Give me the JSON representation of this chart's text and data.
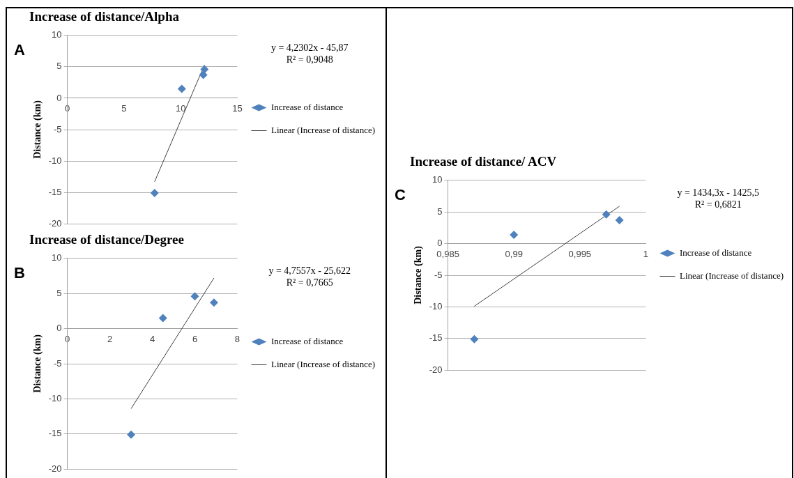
{
  "chart_data": [
    {
      "type": "scatter",
      "title": "Increase of distance/Alpha",
      "ylabel": "Distance (km)",
      "annotations": [
        "A",
        "y = 4,2302x - 45,87",
        "R² = 0,9048"
      ],
      "series": [
        {
          "name": "Increase of distance",
          "color": "#4f81bd",
          "marker": "diamond",
          "x": [
            7.7,
            10.1,
            12,
            12.1
          ],
          "values": [
            -15.1,
            1.5,
            3.7,
            4.6
          ]
        },
        {
          "name": "Linear (Increase of distance)",
          "type": "line",
          "marker": "none",
          "color": "#404040",
          "x": [
            7.7,
            12.1
          ],
          "values": [
            -13.3,
            5.3
          ]
        }
      ],
      "xlim": [
        0,
        15
      ],
      "xticks": [
        0,
        5,
        10,
        15
      ],
      "ylim": [
        -20,
        10
      ],
      "yticks": [
        -20,
        -15,
        -10,
        -5,
        0,
        5,
        10
      ],
      "grid": "y",
      "legend": "right"
    },
    {
      "type": "scatter",
      "title": "Increase of distance/Degree",
      "ylabel": "Distance (km)",
      "annotations": [
        "B",
        "y = 4,7557x - 25,622",
        "R² = 0,7665"
      ],
      "series": [
        {
          "name": "Increase of distance",
          "color": "#4f81bd",
          "marker": "diamond",
          "x": [
            3,
            4.5,
            6,
            6.9
          ],
          "values": [
            -15.1,
            1.5,
            4.6,
            3.7
          ]
        },
        {
          "name": "Linear (Increase of distance)",
          "type": "line",
          "marker": "none",
          "color": "#404040",
          "x": [
            3,
            6.9
          ],
          "values": [
            -11.4,
            7.2
          ]
        }
      ],
      "xlim": [
        0,
        8
      ],
      "xticks": [
        0,
        2,
        4,
        6,
        8
      ],
      "ylim": [
        -20,
        10
      ],
      "yticks": [
        -20,
        -15,
        -10,
        -5,
        0,
        5,
        10
      ],
      "grid": "y",
      "legend": "right"
    },
    {
      "type": "scatter",
      "title": "Increase of distance/ ACV",
      "ylabel": "Distance (km)",
      "annotations": [
        "C",
        "y = 1434,3x - 1425,5",
        "R² = 0,6821"
      ],
      "series": [
        {
          "name": "Increase of distance",
          "color": "#4f81bd",
          "marker": "diamond",
          "x": [
            0.987,
            0.99,
            0.997,
            0.998
          ],
          "values": [
            -15.1,
            1.4,
            4.6,
            3.7
          ]
        },
        {
          "name": "Linear (Increase of distance)",
          "type": "line",
          "marker": "none",
          "color": "#404040",
          "x": [
            0.987,
            0.998
          ],
          "values": [
            -9.9,
            5.9
          ]
        }
      ],
      "xlim": [
        0.985,
        1
      ],
      "xticks": [
        {
          "value": 0.985,
          "label": "0,985"
        },
        {
          "value": 0.99,
          "label": "0,99"
        },
        {
          "value": 0.995,
          "label": "0,995"
        },
        1
      ],
      "ylim": [
        -20,
        10
      ],
      "yticks": [
        -20,
        -15,
        -10,
        -5,
        0,
        5,
        10
      ],
      "grid": "y",
      "legend": "right"
    }
  ]
}
